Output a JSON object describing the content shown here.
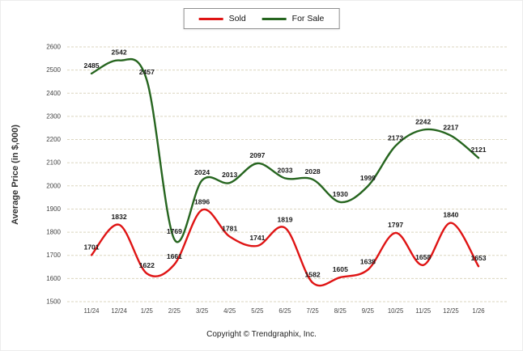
{
  "legend": {
    "items": [
      {
        "label": "Sold",
        "color": "#df1414"
      },
      {
        "label": "For Sale",
        "color": "#26651f"
      }
    ]
  },
  "ylabel": "Average Price (in $,000)",
  "copyright": "Copyright © Trendgraphix, Inc.",
  "chart_data": {
    "type": "line",
    "categories": [
      "11/24",
      "12/24",
      "1/25",
      "2/25",
      "3/25",
      "4/25",
      "5/25",
      "6/25",
      "7/25",
      "8/25",
      "9/25",
      "10/25",
      "11/25",
      "12/25",
      "1/26"
    ],
    "series": [
      {
        "name": "Sold",
        "color": "#df1414",
        "values": [
          1701,
          1832,
          1622,
          1661,
          1896,
          1781,
          1741,
          1819,
          1582,
          1605,
          1638,
          1797,
          1658,
          1840,
          1653
        ]
      },
      {
        "name": "For Sale",
        "color": "#26651f",
        "values": [
          2485,
          2542,
          2457,
          1769,
          2024,
          2013,
          2097,
          2033,
          2028,
          1930,
          1999,
          2173,
          2242,
          2217,
          2121
        ]
      }
    ],
    "title": "",
    "xlabel": "",
    "ylabel": "Average Price (in $,000)",
    "ylim": [
      1500,
      2600
    ],
    "ytick_step": 100,
    "grid": true,
    "grid_color": "#dbd5bf",
    "legend_position": "top-center",
    "label_color": "#1a1a1a",
    "tick_color": "#444444"
  }
}
